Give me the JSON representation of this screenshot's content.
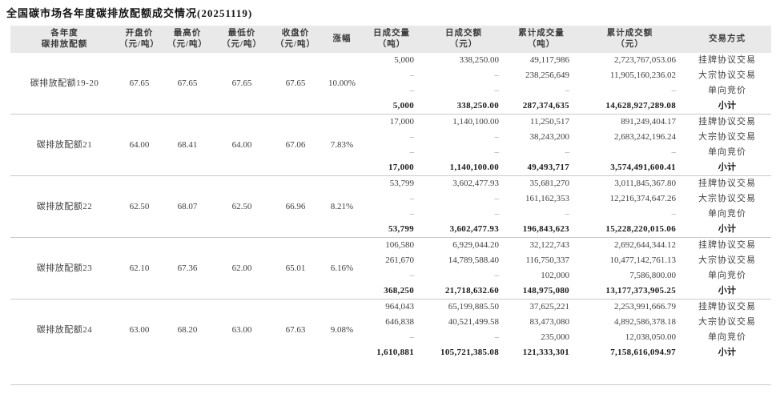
{
  "title": "全国碳市场各年度碳排放配额成交情况(20251119)",
  "colors": {
    "header_bg": "#e9e9e9",
    "divider": "#c9c9c9",
    "text": "#404040",
    "subtotal_text": "#1c1c1c",
    "dash": "#8f8f8f"
  },
  "table": {
    "headers": [
      {
        "label": "各年度",
        "unit": "碳排放配额"
      },
      {
        "label": "开盘价",
        "unit": "（元/吨）"
      },
      {
        "label": "最高价",
        "unit": "（元/吨）"
      },
      {
        "label": "最低价",
        "unit": "（元/吨）"
      },
      {
        "label": "收盘价",
        "unit": "（元/吨）"
      },
      {
        "label": "涨幅",
        "unit": ""
      },
      {
        "label": "日成交量",
        "unit": "（吨）"
      },
      {
        "label": "日成交额",
        "unit": "（元）"
      },
      {
        "label": "累计成交量",
        "unit": "（吨）"
      },
      {
        "label": "累计成交额",
        "unit": "（元）"
      },
      {
        "label": "交易方式",
        "unit": ""
      }
    ],
    "blocks": [
      {
        "name": "碳排放配额19-20",
        "open": "67.65",
        "high": "67.65",
        "low": "67.65",
        "close": "67.65",
        "change": "10.00%",
        "rows": [
          {
            "day_volume": "5,000",
            "day_amount": "338,250.00",
            "cum_volume": "49,117,986",
            "cum_amount": "2,723,767,053.06",
            "method": "挂牌协议交易"
          },
          {
            "day_volume": "–",
            "day_amount": "–",
            "cum_volume": "238,256,649",
            "cum_amount": "11,905,160,236.02",
            "method": "大宗协议交易"
          },
          {
            "day_volume": "–",
            "day_amount": "–",
            "cum_volume": "–",
            "cum_amount": "–",
            "method": "单向竞价"
          },
          {
            "day_volume": "5,000",
            "day_amount": "338,250.00",
            "cum_volume": "287,374,635",
            "cum_amount": "14,628,927,289.08",
            "method": "小计"
          }
        ]
      },
      {
        "name": "碳排放配额21",
        "open": "64.00",
        "high": "68.41",
        "low": "64.00",
        "close": "67.06",
        "change": "7.83%",
        "rows": [
          {
            "day_volume": "17,000",
            "day_amount": "1,140,100.00",
            "cum_volume": "11,250,517",
            "cum_amount": "891,249,404.17",
            "method": "挂牌协议交易"
          },
          {
            "day_volume": "–",
            "day_amount": "–",
            "cum_volume": "38,243,200",
            "cum_amount": "2,683,242,196.24",
            "method": "大宗协议交易"
          },
          {
            "day_volume": "–",
            "day_amount": "–",
            "cum_volume": "–",
            "cum_amount": "–",
            "method": "单向竞价"
          },
          {
            "day_volume": "17,000",
            "day_amount": "1,140,100.00",
            "cum_volume": "49,493,717",
            "cum_amount": "3,574,491,600.41",
            "method": "小计"
          }
        ]
      },
      {
        "name": "碳排放配额22",
        "open": "62.50",
        "high": "68.07",
        "low": "62.50",
        "close": "66.96",
        "change": "8.21%",
        "rows": [
          {
            "day_volume": "53,799",
            "day_amount": "3,602,477.93",
            "cum_volume": "35,681,270",
            "cum_amount": "3,011,845,367.80",
            "method": "挂牌协议交易"
          },
          {
            "day_volume": "–",
            "day_amount": "–",
            "cum_volume": "161,162,353",
            "cum_amount": "12,216,374,647.26",
            "method": "大宗协议交易"
          },
          {
            "day_volume": "–",
            "day_amount": "–",
            "cum_volume": "–",
            "cum_amount": "–",
            "method": "单向竞价"
          },
          {
            "day_volume": "53,799",
            "day_amount": "3,602,477.93",
            "cum_volume": "196,843,623",
            "cum_amount": "15,228,220,015.06",
            "method": "小计"
          }
        ]
      },
      {
        "name": "碳排放配额23",
        "open": "62.10",
        "high": "67.36",
        "low": "62.00",
        "close": "65.01",
        "change": "6.16%",
        "rows": [
          {
            "day_volume": "106,580",
            "day_amount": "6,929,044.20",
            "cum_volume": "32,122,743",
            "cum_amount": "2,692,644,344.12",
            "method": "挂牌协议交易"
          },
          {
            "day_volume": "261,670",
            "day_amount": "14,789,588.40",
            "cum_volume": "116,750,337",
            "cum_amount": "10,477,142,761.13",
            "method": "大宗协议交易"
          },
          {
            "day_volume": "–",
            "day_amount": "–",
            "cum_volume": "102,000",
            "cum_amount": "7,586,800.00",
            "method": "单向竞价"
          },
          {
            "day_volume": "368,250",
            "day_amount": "21,718,632.60",
            "cum_volume": "148,975,080",
            "cum_amount": "13,177,373,905.25",
            "method": "小计"
          }
        ]
      },
      {
        "name": "碳排放配额24",
        "open": "63.00",
        "high": "68.20",
        "low": "63.00",
        "close": "67.63",
        "change": "9.08%",
        "rows": [
          {
            "day_volume": "964,043",
            "day_amount": "65,199,885.50",
            "cum_volume": "37,625,221",
            "cum_amount": "2,253,991,666.79",
            "method": "挂牌协议交易"
          },
          {
            "day_volume": "646,838",
            "day_amount": "40,521,499.58",
            "cum_volume": "83,473,080",
            "cum_amount": "4,892,586,378.18",
            "method": "大宗协议交易"
          },
          {
            "day_volume": "–",
            "day_amount": "–",
            "cum_volume": "235,000",
            "cum_amount": "12,038,050.00",
            "method": "单向竞价"
          },
          {
            "day_volume": "1,610,881",
            "day_amount": "105,721,385.08",
            "cum_volume": "121,333,301",
            "cum_amount": "7,158,616,094.97",
            "method": "小计"
          }
        ]
      }
    ]
  }
}
